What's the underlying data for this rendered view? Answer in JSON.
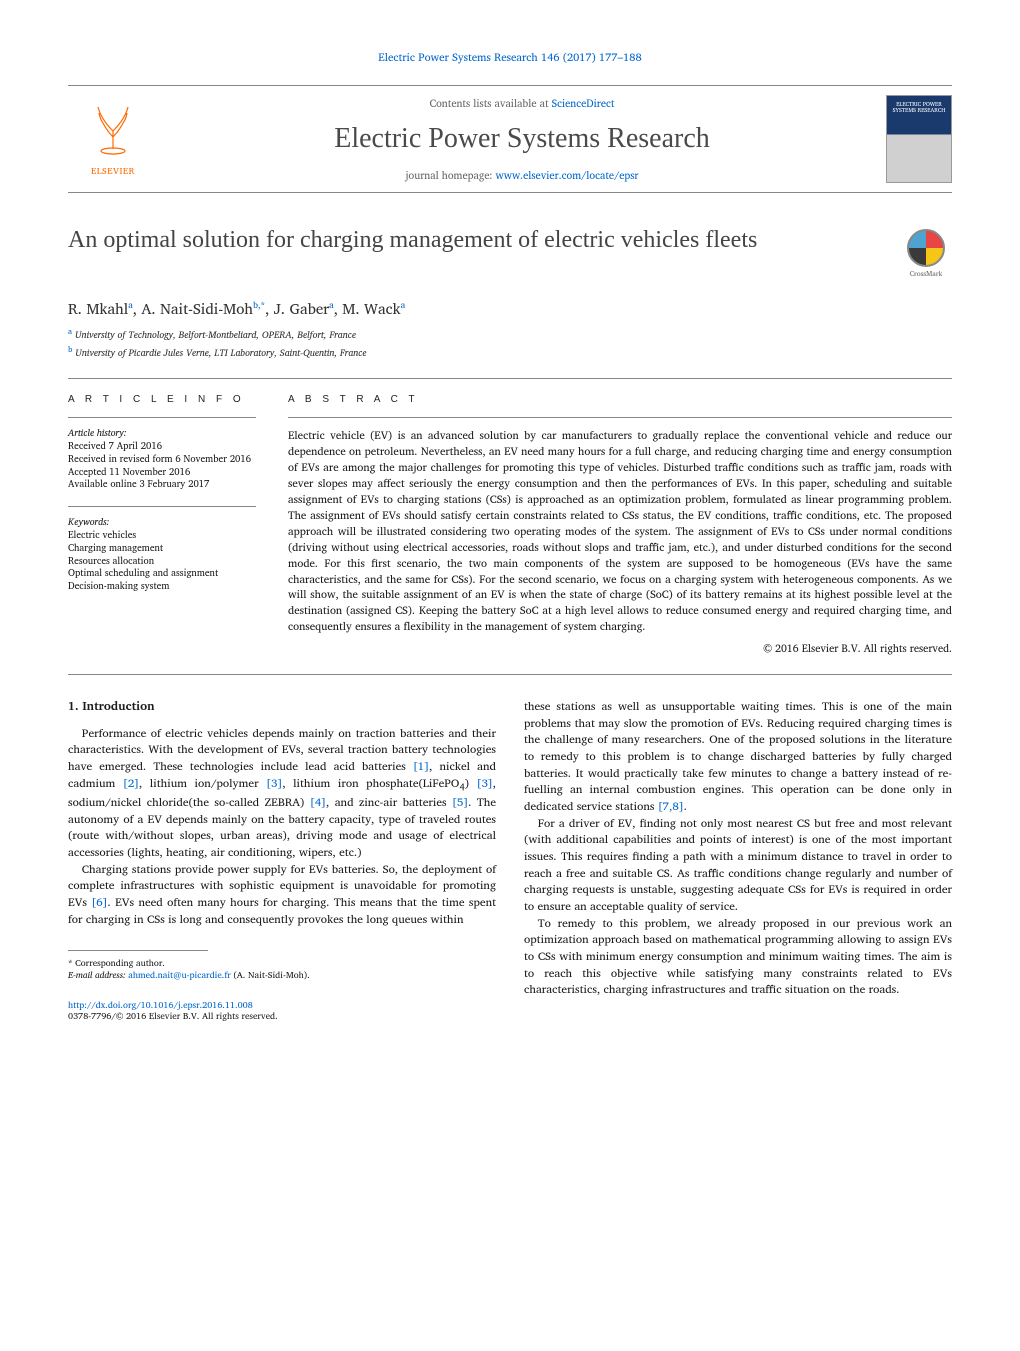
{
  "header_link": "Electric Power Systems Research 146 (2017) 177–188",
  "journal_bar": {
    "contents_prefix": "Contents lists available at ",
    "contents_link": "ScienceDirect",
    "journal_name": "Electric Power Systems Research",
    "homepage_prefix": "journal homepage: ",
    "homepage_url": "www.elsevier.com/locate/epsr",
    "publisher_label": "ELSEVIER",
    "cover_label": "ELECTRIC POWER SYSTEMS RESEARCH"
  },
  "crossmark_label": "CrossMark",
  "title": "An optimal solution for charging management of electric vehicles fleets",
  "authors_html": "R. Mkahl<sup>a</sup>, A. Nait-Sidi-Moh<sup>b,*</sup>, J. Gaber<sup>a</sup>, M. Wack<sup>a</sup>",
  "affiliations": [
    {
      "sup": "a",
      "text": "University of Technology, Belfort-Montbeliard, OPERA, Belfort, France"
    },
    {
      "sup": "b",
      "text": "University of Picardie Jules Verne, LTI Laboratory, Saint-Quentin, France"
    }
  ],
  "article_info": {
    "heading": "A R T I C L E   I N F O",
    "history_label": "Article history:",
    "history": [
      "Received 7 April 2016",
      "Received in revised form 6 November 2016",
      "Accepted 11 November 2016",
      "Available online 3 February 2017"
    ],
    "keywords_label": "Keywords:",
    "keywords": [
      "Electric vehicles",
      "Charging management",
      "Resources allocation",
      "Optimal scheduling and assignment",
      "Decision-making system"
    ]
  },
  "abstract": {
    "heading": "A B S T R A C T",
    "text": "Electric vehicle (EV) is an advanced solution by car manufacturers to gradually replace the conventional vehicle and reduce our dependence on petroleum. Nevertheless, an EV need many hours for a full charge, and reducing charging time and energy consumption of EVs are among the major challenges for promoting this type of vehicles. Disturbed traffic conditions such as traffic jam, roads with sever slopes may affect seriously the energy consumption and then the performances of EVs. In this paper, scheduling and suitable assignment of EVs to charging stations (CSs) is approached as an optimization problem, formulated as linear programming problem. The assignment of EVs should satisfy certain constraints related to CSs status, the EV conditions, traffic conditions, etc. The proposed approach will be illustrated considering two operating modes of the system. The assignment of EVs to CSs under normal conditions (driving without using electrical accessories, roads without slops and traffic jam, etc.), and under disturbed conditions for the second mode. For this first scenario, the two main components of the system are supposed to be homogeneous (EVs have the same characteristics, and the same for CSs). For the second scenario, we focus on a charging system with heterogeneous components. As we will show, the suitable assignment of an EV is when the state of charge (SoC) of its battery remains at its highest possible level at the destination (assigned CS). Keeping the battery SoC at a high level allows to reduce consumed energy and required charging time, and consequently ensures a flexibility in the management of system charging.",
    "copyright": "© 2016 Elsevier B.V. All rights reserved."
  },
  "body": {
    "section_heading": "1. Introduction",
    "left": [
      "Performance of electric vehicles depends mainly on traction batteries and their characteristics. With the development of EVs, several traction battery technologies have emerged. These technologies include lead acid batteries <span class=\"ref\">[1]</span>, nickel and cadmium <span class=\"ref\">[2]</span>, lithium ion/polymer <span class=\"ref\">[3]</span>, lithium iron phosphate(LiFePO<sub>4</sub>) <span class=\"ref\">[3]</span>, sodium/nickel chloride(the so-called ZEBRA) <span class=\"ref\">[4]</span>, and zinc-air batteries <span class=\"ref\">[5]</span>. The autonomy of a EV depends mainly on the battery capacity, type of traveled routes (route with/without slopes, urban areas), driving mode and usage of electrical accessories (lights, heating, air conditioning, wipers, etc.)",
      "Charging stations provide power supply for EVs batteries. So, the deployment of complete infrastructures with sophistic equipment is unavoidable for promoting EVs <span class=\"ref\">[6]</span>. EVs need often many hours for charging. This means that the time spent for charging in CSs is long and consequently provokes the long queues within"
    ],
    "right": [
      "these stations as well as unsupportable waiting times. This is one of the main problems that may slow the promotion of EVs. Reducing required charging times is the challenge of many researchers. One of the proposed solutions in the literature to remedy to this problem is to change discharged batteries by fully charged batteries. It would practically take few minutes to change a battery instead of re-fuelling an internal combustion engines. This operation can be done only in dedicated service stations <span class=\"ref\">[7,8]</span>.",
      "For a driver of EV, finding not only most nearest CS but free and most relevant (with additional capabilities and points of interest) is one of the most important issues. This requires finding a path with a minimum distance to travel in order to reach a free and suitable CS. As traffic conditions change regularly and number of charging requests is unstable, suggesting adequate CSs for EVs is required in order to ensure an acceptable quality of service.",
      "To remedy to this problem, we already proposed in our previous work an optimization approach based on mathematical programming allowing to assign EVs to CSs with minimum energy consumption and minimum waiting times. The aim is to reach this objective while satisfying many constraints related to EVs characteristics, charging infrastructures and traffic situation on the roads."
    ]
  },
  "footnote": {
    "corr_label": "* Corresponding author.",
    "email_label": "E-mail address:",
    "email": "ahmed.nait@u-picardie.fr",
    "email_person": "(A. Nait-Sidi-Moh)."
  },
  "doi": {
    "url": "http://dx.doi.org/10.1016/j.epsr.2016.11.008",
    "line2": "0378-7796/© 2016 Elsevier B.V. All rights reserved."
  },
  "colors": {
    "link": "#0066cc",
    "orange": "#ff6a00",
    "text": "#1a1a1a"
  }
}
